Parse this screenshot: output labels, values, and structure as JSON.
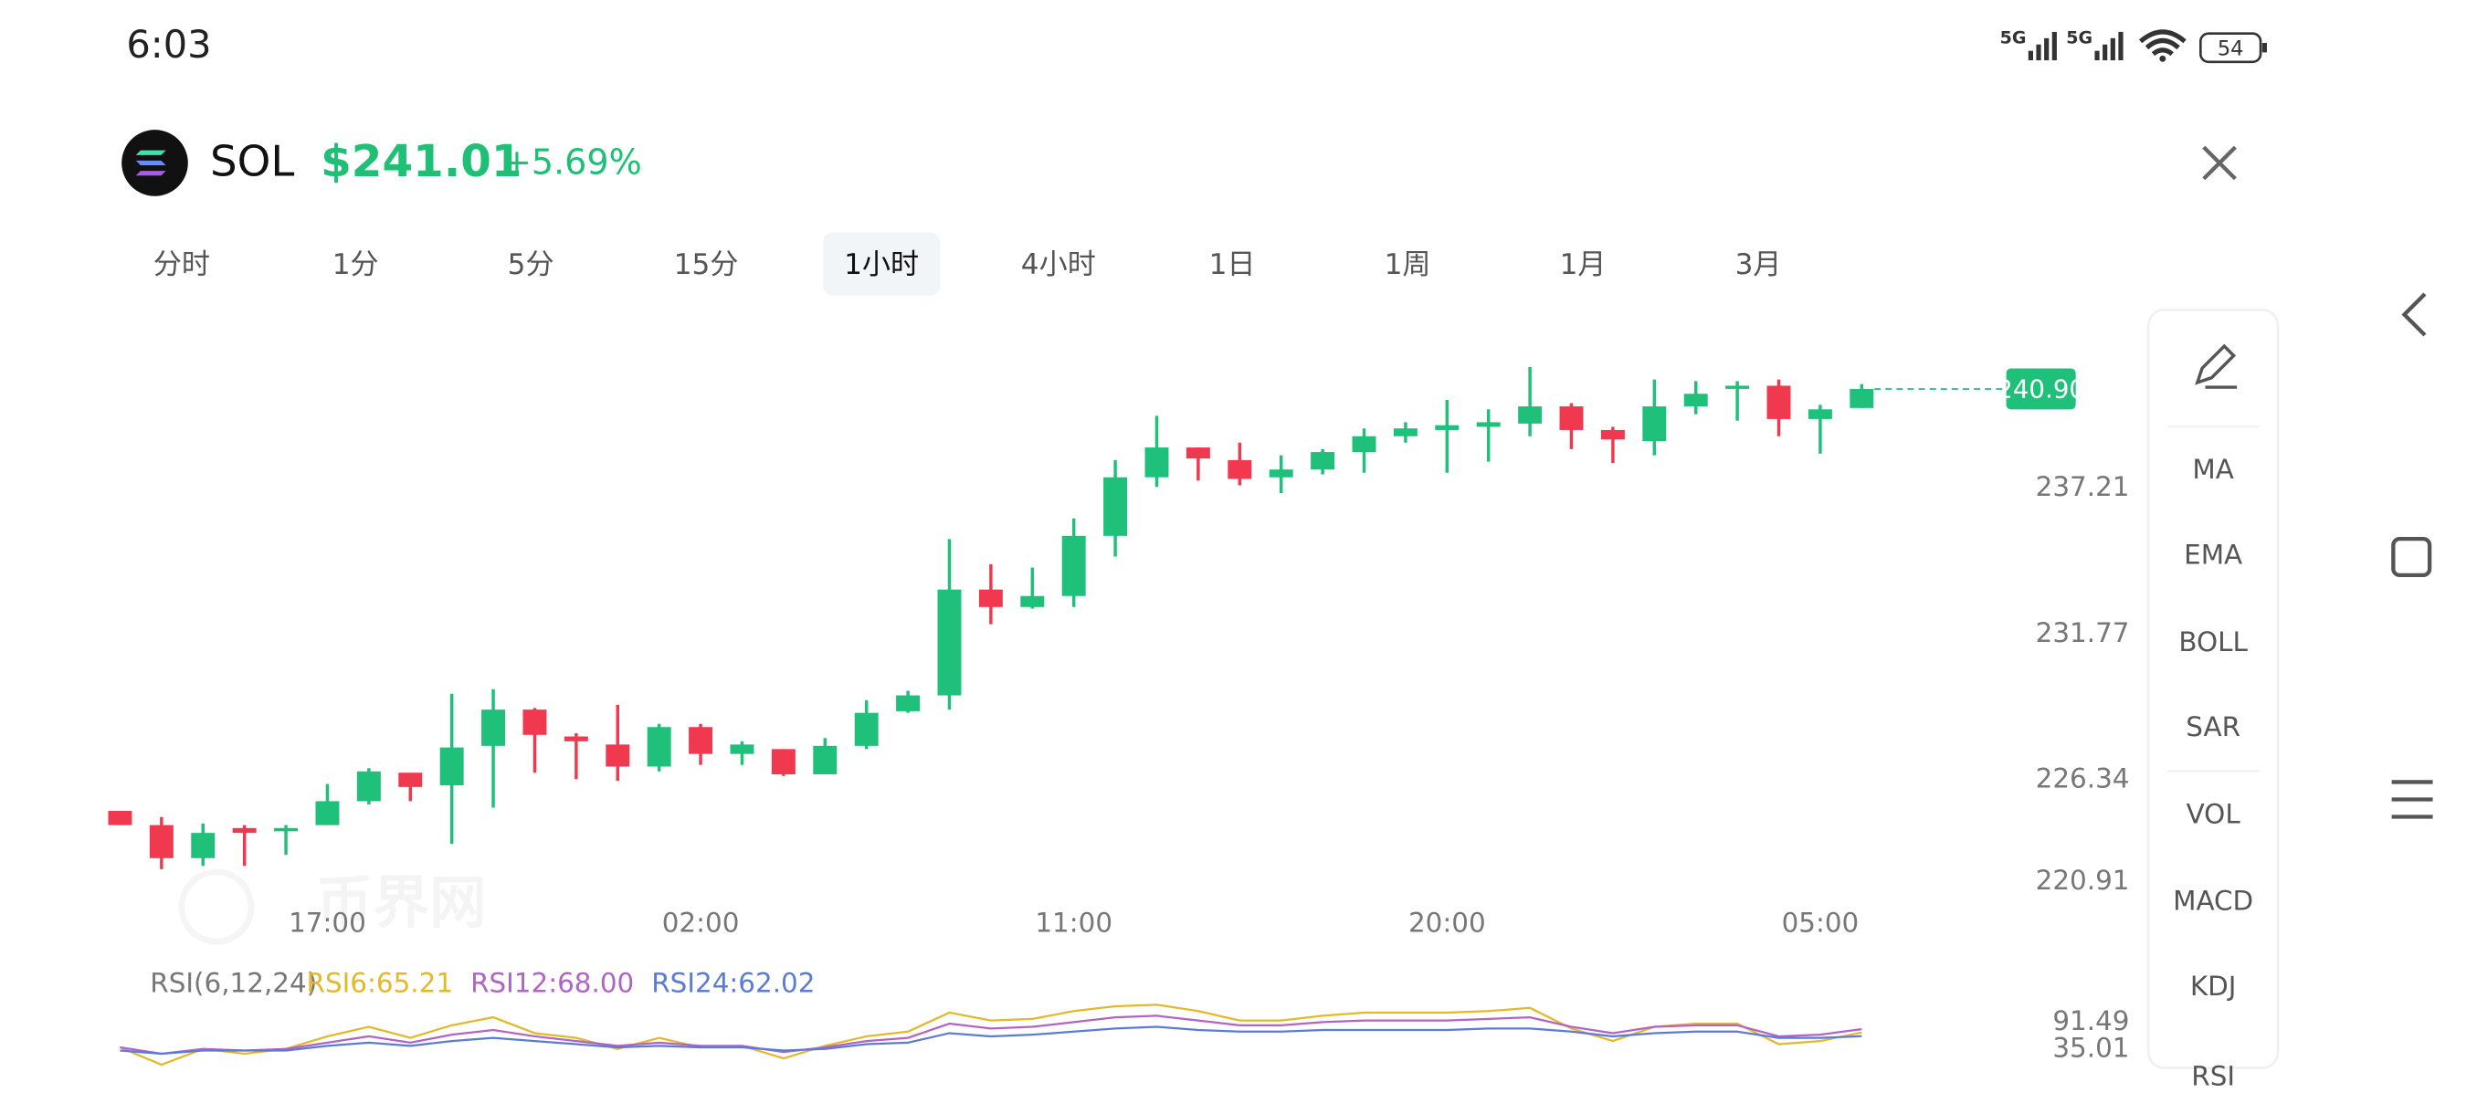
{
  "status_bar": {
    "time": "6:03",
    "network": [
      "5G",
      "5G"
    ],
    "battery": "54"
  },
  "header": {
    "symbol": "SOL",
    "price": "$241.01",
    "change": "+5.69%"
  },
  "tabs": [
    "分时",
    "1分",
    "5分",
    "15分",
    "1小时",
    "4小时",
    "1日",
    "1周",
    "1月",
    "3月"
  ],
  "selected_tab": 4,
  "indicators": [
    "MA",
    "EMA",
    "BOLL",
    "SAR",
    "VOL",
    "MACD",
    "KDJ",
    "RSI"
  ],
  "watermark": "币界网",
  "chart_data": [
    {
      "type": "candlestick",
      "up_color": "#1ec07a",
      "down_color": "#f0384f",
      "categories": [
        null,
        null,
        null,
        null,
        null,
        "17:00",
        null,
        null,
        null,
        null,
        null,
        null,
        null,
        null,
        "02:00",
        null,
        null,
        null,
        null,
        null,
        null,
        null,
        null,
        "11:00",
        null,
        null,
        null,
        null,
        null,
        null,
        null,
        null,
        "20:00",
        null,
        null,
        null,
        null,
        null,
        null,
        null,
        null,
        "05:00",
        null
      ],
      "open": [
        225.19,
        224.66,
        223.43,
        224.55,
        224.43,
        224.66,
        225.55,
        226.61,
        226.14,
        227.61,
        228.96,
        227.96,
        227.66,
        226.84,
        228.31,
        227.31,
        227.49,
        226.55,
        227.61,
        228.9,
        229.49,
        233.43,
        232.78,
        233.19,
        235.43,
        237.61,
        238.72,
        238.25,
        237.61,
        237.9,
        238.55,
        239.14,
        239.37,
        239.49,
        239.61,
        240.25,
        239.37,
        238.96,
        240.25,
        240.96,
        241.02,
        239.78,
        240.19
      ],
      "high": [
        225.19,
        224.96,
        224.72,
        224.66,
        224.66,
        226.19,
        226.78,
        226.61,
        229.55,
        229.72,
        229.02,
        228.08,
        229.14,
        228.43,
        228.43,
        227.78,
        227.49,
        227.9,
        229.31,
        229.66,
        235.31,
        234.37,
        234.25,
        236.08,
        238.25,
        239.9,
        238.72,
        238.9,
        238.43,
        238.66,
        239.43,
        239.66,
        240.49,
        240.14,
        241.72,
        240.37,
        239.49,
        241.25,
        241.19,
        241.19,
        241.25,
        240.31,
        241.08
      ],
      "low": [
        224.66,
        223.02,
        223.14,
        223.14,
        223.55,
        224.66,
        225.43,
        225.55,
        223.96,
        225.31,
        226.61,
        226.37,
        226.31,
        226.66,
        226.9,
        226.9,
        226.49,
        226.55,
        227.49,
        228.84,
        228.96,
        232.14,
        232.72,
        232.78,
        234.66,
        237.25,
        237.49,
        237.31,
        237.02,
        237.72,
        237.78,
        238.9,
        237.78,
        238.19,
        239.14,
        238.66,
        238.14,
        238.43,
        239.96,
        239.72,
        239.14,
        238.49,
        240.19
      ],
      "close": [
        224.66,
        223.43,
        224.37,
        224.37,
        224.55,
        225.55,
        226.66,
        226.08,
        227.55,
        228.96,
        228.02,
        227.78,
        226.84,
        228.31,
        227.31,
        227.66,
        226.55,
        227.61,
        228.84,
        229.49,
        233.43,
        232.78,
        233.19,
        235.43,
        237.61,
        238.72,
        238.31,
        237.55,
        237.9,
        238.55,
        239.14,
        239.43,
        239.55,
        239.66,
        240.25,
        239.37,
        239.02,
        240.25,
        240.72,
        241.02,
        239.78,
        240.14,
        240.9
      ],
      "ylim": [
        220.5,
        242.14
      ],
      "yticks": [
        220.91,
        226.34,
        231.77,
        237.21
      ],
      "last_price": {
        "value": 240.9,
        "label": "240.90"
      }
    },
    {
      "type": "line",
      "title": "RSI(6,12,24)",
      "ylim": [
        35.01,
        91.49
      ],
      "yticks": [
        {
          "value": 35.01,
          "label": "35.01"
        },
        {
          "value": 91.49,
          "label": "91.49"
        }
      ],
      "series": [
        {
          "name": "RSI6:65.21",
          "color": "#e3b92c",
          "values": [
            52.5,
            37.7,
            51.2,
            47.1,
            51.2,
            61.9,
            70.0,
            60.6,
            71.3,
            78.1,
            64.6,
            60.6,
            51.2,
            60.6,
            52.5,
            53.8,
            43.1,
            53.8,
            61.9,
            65.9,
            82.1,
            75.4,
            76.7,
            83.4,
            87.5,
            88.8,
            83.4,
            75.4,
            75.4,
            79.4,
            82.1,
            82.1,
            82.1,
            83.4,
            86.1,
            68.6,
            57.9,
            70.0,
            72.7,
            72.7,
            55.2,
            57.9,
            65.21
          ]
        },
        {
          "name": "RSI12:68.00",
          "color": "#b065c4",
          "values": [
            52.5,
            47.1,
            51.2,
            49.8,
            51.2,
            56.5,
            61.9,
            56.5,
            63.3,
            67.3,
            61.9,
            57.9,
            53.8,
            56.5,
            53.8,
            53.8,
            48.5,
            52.5,
            57.9,
            60.6,
            72.7,
            68.6,
            70.0,
            74.0,
            78.1,
            79.4,
            75.4,
            71.3,
            71.3,
            74.0,
            75.4,
            75.4,
            75.4,
            76.7,
            78.1,
            70.0,
            64.6,
            70.0,
            71.3,
            71.3,
            61.9,
            63.3,
            68.0
          ]
        },
        {
          "name": "RSI24:62.02",
          "color": "#5b7bd5",
          "values": [
            49.8,
            47.1,
            49.8,
            49.8,
            49.8,
            53.8,
            56.5,
            53.8,
            57.9,
            60.6,
            57.9,
            55.2,
            52.5,
            53.8,
            52.5,
            52.5,
            49.8,
            51.2,
            55.2,
            56.5,
            64.6,
            61.9,
            63.3,
            65.9,
            68.6,
            70.0,
            67.3,
            65.9,
            65.9,
            67.3,
            67.3,
            67.3,
            67.3,
            68.6,
            68.6,
            65.9,
            61.9,
            64.6,
            65.9,
            65.9,
            60.6,
            60.6,
            62.02
          ]
        }
      ]
    }
  ]
}
